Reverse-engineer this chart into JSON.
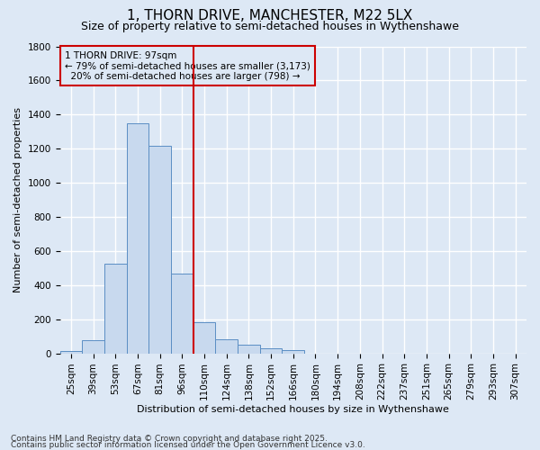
{
  "title": "1, THORN DRIVE, MANCHESTER, M22 5LX",
  "subtitle": "Size of property relative to semi-detached houses in Wythenshawe",
  "xlabel": "Distribution of semi-detached houses by size in Wythenshawe",
  "ylabel": "Number of semi-detached properties",
  "categories": [
    "25sqm",
    "39sqm",
    "53sqm",
    "67sqm",
    "81sqm",
    "96sqm",
    "110sqm",
    "124sqm",
    "138sqm",
    "152sqm",
    "166sqm",
    "180sqm",
    "194sqm",
    "208sqm",
    "222sqm",
    "237sqm",
    "251sqm",
    "265sqm",
    "279sqm",
    "293sqm",
    "307sqm"
  ],
  "values": [
    15,
    75,
    525,
    1350,
    1215,
    470,
    185,
    80,
    50,
    30,
    20,
    0,
    0,
    0,
    0,
    0,
    0,
    0,
    0,
    0,
    0
  ],
  "bar_color": "#c8d9ee",
  "bar_edge_color": "#5b8ec4",
  "vline_color": "#cc0000",
  "vline_x": 5.5,
  "annotation_box_color": "#cc0000",
  "annotation_line1": "1 THORN DRIVE: 97sqm",
  "annotation_line2": "← 79% of semi-detached houses are smaller (3,173)",
  "annotation_line3": "  20% of semi-detached houses are larger (798) →",
  "ylim": [
    0,
    1800
  ],
  "yticks": [
    0,
    200,
    400,
    600,
    800,
    1000,
    1200,
    1400,
    1600,
    1800
  ],
  "footnote1": "Contains HM Land Registry data © Crown copyright and database right 2025.",
  "footnote2": "Contains public sector information licensed under the Open Government Licence v3.0.",
  "bg_color": "#dde8f5",
  "grid_color": "#ffffff",
  "title_fontsize": 11,
  "subtitle_fontsize": 9,
  "axis_label_fontsize": 8,
  "tick_fontsize": 7.5,
  "annotation_fontsize": 7.5,
  "footnote_fontsize": 6.5
}
